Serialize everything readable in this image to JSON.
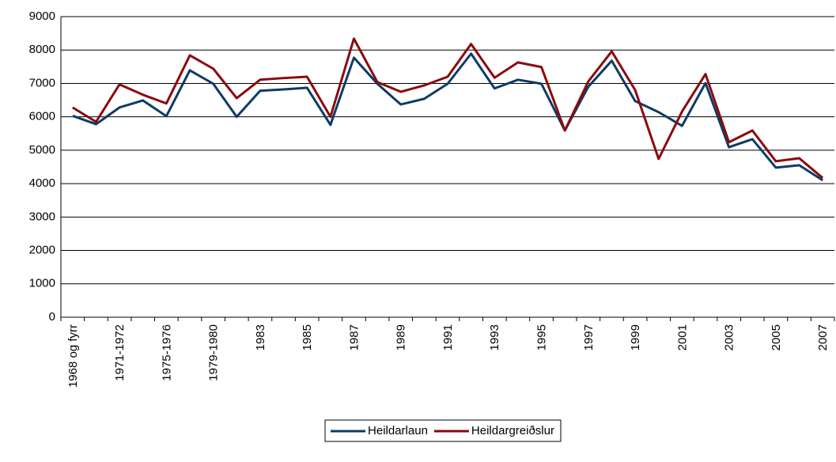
{
  "chart_data": {
    "type": "line",
    "categories": [
      "1968 og fyrr",
      null,
      "1971-1972",
      null,
      "1975-1976",
      null,
      "1979-1980",
      null,
      "1983",
      null,
      "1985",
      null,
      "1987",
      null,
      "1989",
      null,
      "1991",
      null,
      "1993",
      null,
      "1995",
      null,
      "1997",
      null,
      "1999",
      null,
      "2001",
      null,
      "2003",
      null,
      "2005",
      null,
      "2007"
    ],
    "series": [
      {
        "name": "Heildarlaun",
        "color": "#0d3b66",
        "values": [
          6030,
          5780,
          6280,
          6490,
          6020,
          7390,
          6990,
          6000,
          6780,
          6820,
          6870,
          5760,
          7770,
          6990,
          6370,
          6540,
          6990,
          7890,
          6850,
          7110,
          6990,
          5590,
          6900,
          7680,
          6470,
          6140,
          5730,
          7010,
          5090,
          5330,
          4480,
          4550,
          4100
        ]
      },
      {
        "name": "Heildargreiðslur",
        "color": "#8b0a0f",
        "values": [
          6280,
          5850,
          6970,
          6660,
          6400,
          7840,
          7440,
          6560,
          7110,
          7160,
          7200,
          6000,
          8340,
          7040,
          6750,
          6940,
          7200,
          8180,
          7170,
          7630,
          7490,
          5590,
          7060,
          7960,
          6800,
          4740,
          6160,
          7280,
          5240,
          5590,
          4670,
          4760,
          4170
        ]
      }
    ],
    "ylim": [
      0,
      9000
    ],
    "yticks": [
      0,
      1000,
      2000,
      3000,
      4000,
      5000,
      6000,
      7000,
      8000,
      9000
    ],
    "grid": true,
    "legend": "bottom"
  }
}
